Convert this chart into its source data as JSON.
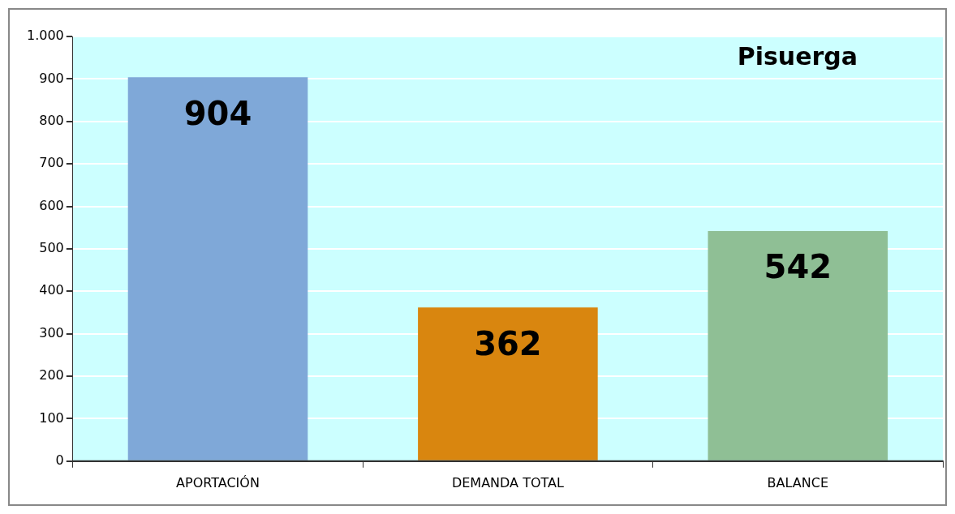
{
  "chart_data": {
    "type": "bar",
    "title": "Pisuerga",
    "categories": [
      "APORTACIÓN",
      "DEMANDA TOTAL",
      "BALANCE"
    ],
    "values": [
      904,
      362,
      542
    ],
    "colors": [
      "#7fa8d8",
      "#d9860f",
      "#8fbf95"
    ],
    "ylim": [
      0,
      1000
    ],
    "yticks": [
      0,
      100,
      200,
      300,
      400,
      500,
      600,
      700,
      800,
      900,
      {
        "value": 1000,
        "label": "1.000"
      }
    ],
    "grid": "y",
    "legend": false,
    "data_labels": true
  }
}
